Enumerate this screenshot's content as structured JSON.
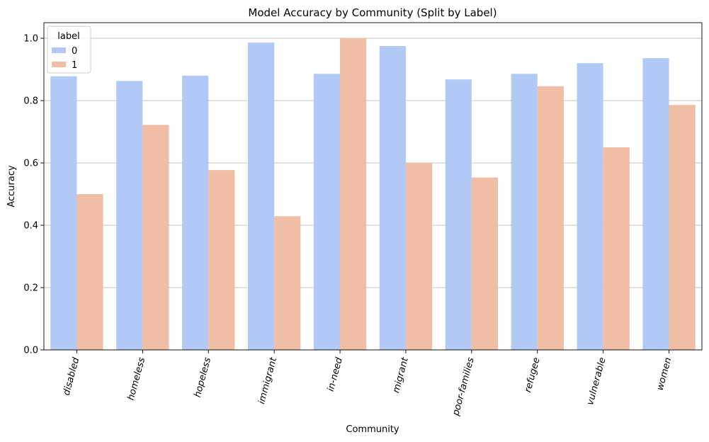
{
  "chart_data": {
    "type": "bar",
    "title": "Model Accuracy by Community (Split by Label)",
    "xlabel": "Community",
    "ylabel": "Accuracy",
    "categories": [
      "disabled",
      "homeless",
      "hopeless",
      "immigrant",
      "in-need",
      "migrant",
      "poor-families",
      "refugee",
      "vulnerable",
      "women"
    ],
    "series": [
      {
        "name": "0",
        "color": "#b3c9f5",
        "values": [
          0.878,
          0.863,
          0.88,
          0.986,
          0.886,
          0.975,
          0.868,
          0.886,
          0.92,
          0.936
        ]
      },
      {
        "name": "1",
        "color": "#f0bda5",
        "values": [
          0.5,
          0.722,
          0.577,
          0.429,
          1.0,
          0.6,
          0.553,
          0.846,
          0.65,
          0.786
        ]
      }
    ],
    "ylim": [
      0,
      1.05
    ],
    "yticks": [
      0.0,
      0.2,
      0.4,
      0.6,
      0.8,
      1.0
    ],
    "ytick_labels": [
      "0.0",
      "0.2",
      "0.4",
      "0.6",
      "0.8",
      "1.0"
    ],
    "grid": "y",
    "legend": {
      "title": "label",
      "position": "top-left"
    }
  }
}
